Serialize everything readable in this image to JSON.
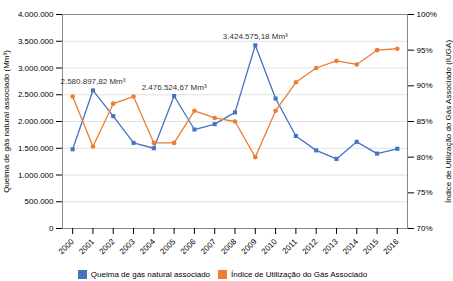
{
  "chart_data": {
    "type": "line",
    "x": [
      2000,
      2001,
      2002,
      2003,
      2004,
      2005,
      2006,
      2007,
      2008,
      2009,
      2010,
      2011,
      2012,
      2013,
      2014,
      2015,
      2016
    ],
    "xlim": [
      1999.5,
      2016.5
    ],
    "xticks": [
      2000,
      2001,
      2002,
      2003,
      2004,
      2005,
      2006,
      2007,
      2008,
      2009,
      2010,
      2011,
      2012,
      2013,
      2014,
      2015,
      2016
    ],
    "ylabel": "Queima de gás natural associado (Mm³)",
    "y2label": "Índice de Utilização do Gás Associado (IUGA)",
    "ylim": [
      0,
      4000000
    ],
    "yticks": [
      0,
      {
        "value": 500000,
        "label": "500.000"
      },
      {
        "value": 1000000,
        "label": "1.000.000"
      },
      {
        "value": 1500000,
        "label": "1.500.000"
      },
      {
        "value": 2000000,
        "label": "2.000.000"
      },
      {
        "value": 2500000,
        "label": "2.500.000"
      },
      {
        "value": 3000000,
        "label": "3.000.000"
      },
      {
        "value": 3500000,
        "label": "3.500.000"
      },
      {
        "value": 4000000,
        "label": "4.000.000"
      }
    ],
    "y2lim": [
      70,
      100
    ],
    "y2ticks": [
      {
        "value": 70,
        "label": "70%"
      },
      {
        "value": 75,
        "label": "75%"
      },
      {
        "value": 80,
        "label": "80%"
      },
      {
        "value": 85,
        "label": "85%"
      },
      {
        "value": 90,
        "label": "90%"
      },
      {
        "value": 95,
        "label": "95%"
      },
      {
        "value": 100,
        "label": "100%"
      }
    ],
    "series": [
      {
        "name": "Queima de gás natural associado",
        "color": "#4472C4",
        "marker": "square",
        "values": [
          1480000,
          2580898,
          2100000,
          1600000,
          1500000,
          2476525,
          1850000,
          1950000,
          2170000,
          3424575,
          2430000,
          1730000,
          1460000,
          1300000,
          1620000,
          1400000,
          1490000
        ]
      },
      {
        "name": "Índice de Utilização do Gás Associado",
        "color": "#ED7D31",
        "marker": "circle",
        "axis": "y2",
        "values": [
          88.5,
          81.5,
          87.5,
          88.5,
          82.0,
          82.0,
          86.5,
          85.5,
          85.0,
          80.0,
          86.5,
          90.5,
          92.5,
          93.5,
          93.0,
          95.0,
          95.2
        ]
      }
    ],
    "annotations": [
      {
        "text": "2.580.897,82 Mm³",
        "x": 2001,
        "y": 2580898
      },
      {
        "text": "2.476.524,67 Mm³",
        "x": 2005,
        "y": 2476525
      },
      {
        "text": "3.424.575,18 Mm³",
        "x": 2009,
        "y": 3424575
      }
    ],
    "grid": "y",
    "legend": "bottom"
  }
}
